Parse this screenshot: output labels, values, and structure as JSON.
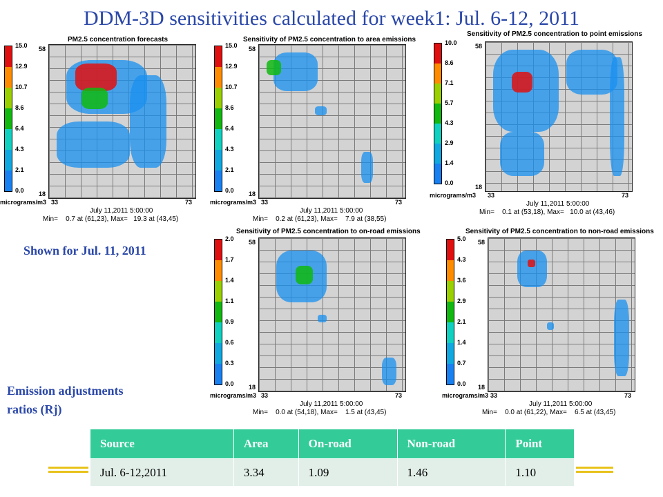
{
  "title": "DDM-3D sensitivities calculated for week1: Jul. 6-12, 2011",
  "shown_for": "Shown for Jul. 11, 2011",
  "ratios_label_1": "Emission adjustments",
  "ratios_label_2": "ratios (Rj)",
  "panels": [
    {
      "title": "PM2.5 concentration forecasts",
      "ticks": [
        "15.0",
        "12.9",
        "10.7",
        "8.6",
        "6.4",
        "4.3",
        "2.1",
        "0.0"
      ],
      "units": "micrograms/m3",
      "corner_top": "58",
      "corner_bottom": "18",
      "x_left": "33",
      "x_right": "73",
      "date": "July 11,2011 5:00:00",
      "minmax": "Min=    0.7 at (61,23), Max=   19.3 at (43,45)"
    },
    {
      "title": "Sensitivity of PM2.5 concentration to area emissions",
      "ticks": [
        "15.0",
        "12.9",
        "10.7",
        "8.6",
        "6.4",
        "4.3",
        "2.1",
        "0.0"
      ],
      "units": "micrograms/m3",
      "corner_top": "58",
      "corner_bottom": "18",
      "x_left": "33",
      "x_right": "73",
      "date": "July 11,2011 5:00:00",
      "minmax": "Min=    0.2 at (61,23), Max=    7.9 at (38,55)"
    },
    {
      "title": "Sensitivity of PM2.5 concentration to point emissions",
      "ticks": [
        "10.0",
        "8.6",
        "7.1",
        "5.7",
        "4.3",
        "2.9",
        "1.4",
        "0.0"
      ],
      "units": "micrograms/m3",
      "corner_top": "58",
      "corner_bottom": "18",
      "x_left": "33",
      "x_right": "73",
      "date": "July 11,2011 5:00:00",
      "minmax": "Min=    0.1 at (53,18), Max=   10.0 at (43,46)"
    },
    {
      "title": "Sensitivity of PM2.5 concentration to on-road emissions",
      "ticks": [
        "2.0",
        "1.7",
        "1.4",
        "1.1",
        "0.9",
        "0.6",
        "0.3",
        "0.0"
      ],
      "units": "micrograms/m3",
      "corner_top": "58",
      "corner_bottom": "18",
      "x_left": "33",
      "x_right": "73",
      "date": "July 11,2011 5:00:00",
      "minmax": "Min=    0.0 at (54,18), Max=    1.5 at (43,45)"
    },
    {
      "title": "Sensitivity of PM2.5 concentration to non-road emissions",
      "ticks": [
        "5.0",
        "4.3",
        "3.6",
        "2.9",
        "2.1",
        "1.4",
        "0.7",
        "0.0"
      ],
      "units": "micrograms/m3",
      "corner_top": "58",
      "corner_bottom": "18",
      "x_left": "33",
      "x_right": "73",
      "date": "July 11,2011 5:00:00",
      "minmax": "Min=    0.0 at (61,22), Max=    6.5 at (43,45)"
    }
  ],
  "legend_colors": [
    "#e01010",
    "#ff8c00",
    "#9ad000",
    "#10b810",
    "#10d0c0",
    "#10a8e0",
    "#1880f0",
    "#c8c8c8"
  ],
  "table": {
    "headers": [
      "Source",
      "Area",
      "On-road",
      "Non-road",
      "Point"
    ],
    "row": [
      "Jul. 6-12,2011",
      "3.34",
      "1.09",
      "1.46",
      "1.10"
    ]
  }
}
